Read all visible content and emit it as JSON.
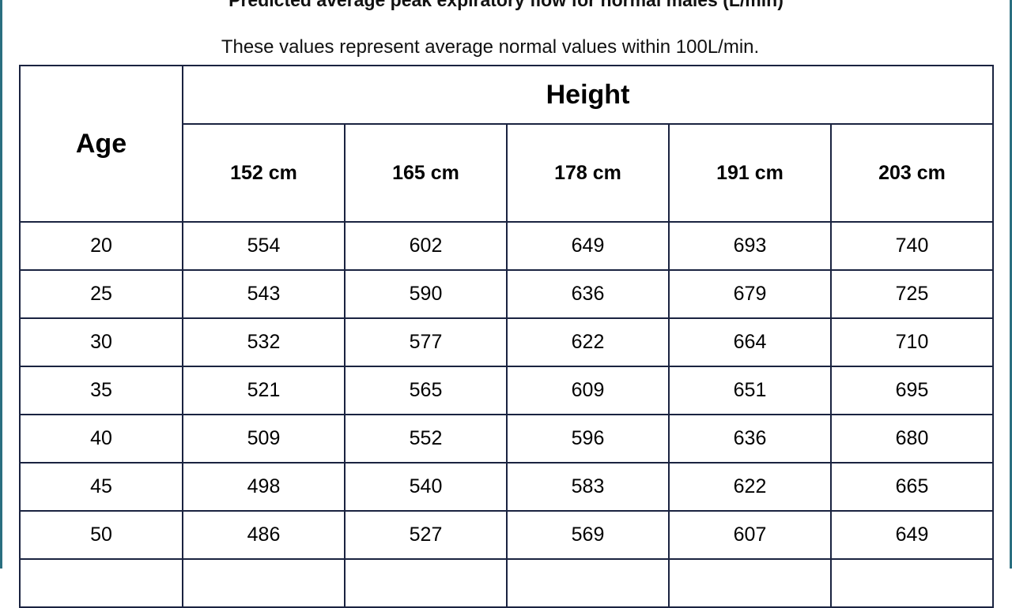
{
  "document": {
    "title": "Predicted average peak expiratory flow for normal males (L/min)",
    "subtitle": "These values represent average normal values within 100L/min."
  },
  "table": {
    "row_header": "Age",
    "group_header": "Height",
    "columns": [
      "152 cm",
      "165 cm",
      "178 cm",
      "191 cm",
      "203 cm"
    ],
    "rows": [
      {
        "age": "20",
        "values": [
          "554",
          "602",
          "649",
          "693",
          "740"
        ]
      },
      {
        "age": "25",
        "values": [
          "543",
          "590",
          "636",
          "679",
          "725"
        ]
      },
      {
        "age": "30",
        "values": [
          "532",
          "577",
          "622",
          "664",
          "710"
        ]
      },
      {
        "age": "35",
        "values": [
          "521",
          "565",
          "609",
          "651",
          "695"
        ]
      },
      {
        "age": "40",
        "values": [
          "509",
          "552",
          "596",
          "636",
          "680"
        ]
      },
      {
        "age": "45",
        "values": [
          "498",
          "540",
          "583",
          "622",
          "665"
        ]
      },
      {
        "age": "50",
        "values": [
          "486",
          "527",
          "569",
          "607",
          "649"
        ]
      }
    ]
  },
  "colors": {
    "frame": "#2a6f80",
    "border": "#1a2340",
    "text": "#000000"
  }
}
